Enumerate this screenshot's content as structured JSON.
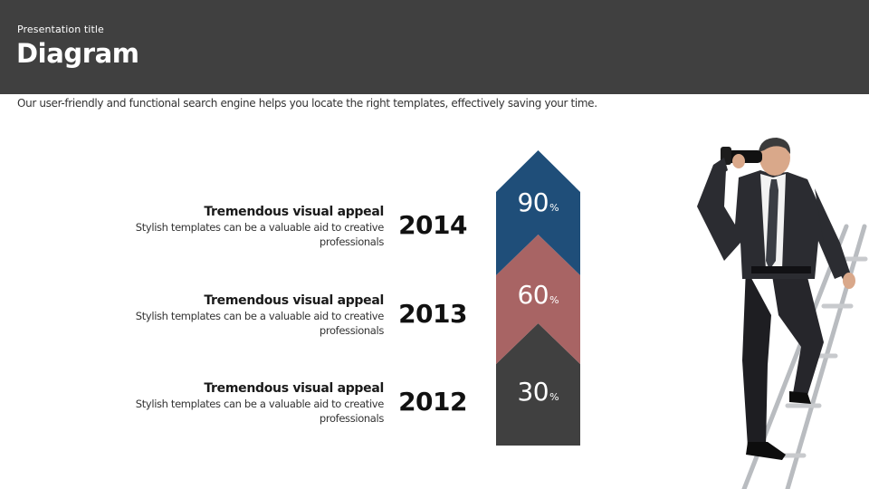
{
  "header": {
    "subtitle": "Presentation title",
    "title": "Diagram"
  },
  "intro": "Our user-friendly and functional search engine helps you locate the right templates, effectively saving your time.",
  "items": [
    {
      "heading": "Tremendous visual appeal",
      "description": "Stylish templates can be a valuable aid to creative professionals",
      "year": "2014",
      "percent": "90",
      "unit": "%",
      "color": "#1F4E79"
    },
    {
      "heading": "Tremendous visual appeal",
      "description": "Stylish templates can be a valuable aid to creative professionals",
      "year": "2013",
      "percent": "60",
      "unit": "%",
      "color": "#A86464"
    },
    {
      "heading": "Tremendous visual appeal",
      "description": "Stylish templates can be a valuable aid to creative professionals",
      "year": "2012",
      "percent": "30",
      "unit": "%",
      "color": "#404040"
    }
  ],
  "illustration": {
    "icon": "businessman-with-binoculars-on-ladder-icon"
  }
}
